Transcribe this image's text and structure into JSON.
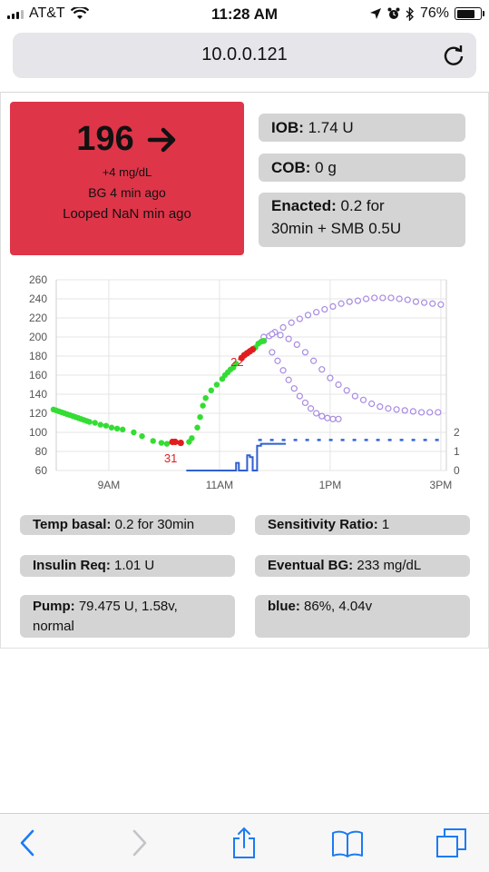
{
  "status_bar": {
    "carrier": "AT&T",
    "time": "11:28 AM",
    "battery": "76%",
    "battery_level": 0.76
  },
  "url_bar": {
    "url": "10.0.0.121"
  },
  "bg": {
    "value": "196",
    "delta": "+4 mg/dL",
    "age": "BG 4 min ago",
    "loop": "Looped NaN min ago",
    "color": "#df3549"
  },
  "iob": {
    "label": "IOB:",
    "value": " 1.74 U"
  },
  "cob": {
    "label": "COB:",
    "value": " 0 g"
  },
  "enacted": {
    "label": "Enacted:",
    "value": " 0.2 for",
    "value2": "30min + SMB 0.5U"
  },
  "stats": {
    "temp_basal": {
      "label": "Temp basal:",
      "value": " 0.2 for 30min"
    },
    "sensitivity": {
      "label": "Sensitivity Ratio:",
      "value": " 1"
    },
    "insulin_req": {
      "label": "Insulin Req:",
      "value": " 1.01 U"
    },
    "eventual_bg": {
      "label": "Eventual BG:",
      "value": " 233 mg/dL"
    },
    "pump": {
      "label": "Pump:",
      "value": " 79.475 U, 1.58v,",
      "value2": "normal"
    },
    "rig": {
      "label": "blue:",
      "value": " 86%, 4.04v"
    }
  },
  "chart_data": {
    "type": "scatter",
    "y_ticks": [
      "260",
      "240",
      "220",
      "200",
      "180",
      "160",
      "140",
      "120",
      "100",
      "80",
      "60"
    ],
    "ylim": [
      60,
      260
    ],
    "y2_ticks": [
      "2",
      "1",
      "0"
    ],
    "y2lim": [
      0,
      2
    ],
    "x_ticks": [
      "9AM",
      "11AM",
      "1PM",
      "3PM"
    ],
    "xlim": [
      8.05,
      15.1
    ],
    "annotations": [
      {
        "text": "31",
        "x": 10.0,
        "y": 80
      },
      {
        "text": "22",
        "x": 11.2,
        "y": 181
      }
    ],
    "bg_green": [
      [
        8.0,
        124
      ],
      [
        8.05,
        123
      ],
      [
        8.1,
        122
      ],
      [
        8.15,
        121
      ],
      [
        8.2,
        120
      ],
      [
        8.25,
        119
      ],
      [
        8.3,
        118
      ],
      [
        8.35,
        117
      ],
      [
        8.4,
        116
      ],
      [
        8.45,
        115
      ],
      [
        8.5,
        114
      ],
      [
        8.55,
        113
      ],
      [
        8.6,
        112
      ],
      [
        8.65,
        111
      ],
      [
        8.75,
        110
      ],
      [
        8.85,
        108
      ],
      [
        8.95,
        107
      ],
      [
        9.05,
        105
      ],
      [
        9.15,
        104
      ],
      [
        9.25,
        103
      ],
      [
        9.45,
        100
      ],
      [
        9.6,
        96
      ],
      [
        9.8,
        91
      ],
      [
        9.95,
        89
      ],
      [
        10.05,
        88
      ],
      [
        10.45,
        90
      ],
      [
        10.5,
        94
      ],
      [
        10.6,
        105
      ],
      [
        10.65,
        116
      ],
      [
        10.7,
        128
      ],
      [
        10.75,
        136
      ],
      [
        10.85,
        144
      ],
      [
        10.95,
        150
      ],
      [
        11.05,
        156
      ],
      [
        11.1,
        160
      ],
      [
        11.15,
        163
      ],
      [
        11.2,
        166
      ],
      [
        11.25,
        168
      ],
      [
        11.3,
        172
      ],
      [
        11.65,
        189
      ],
      [
        11.7,
        193
      ],
      [
        11.75,
        195
      ],
      [
        11.8,
        196
      ]
    ],
    "bg_red": [
      [
        10.15,
        90
      ],
      [
        10.2,
        90
      ],
      [
        10.3,
        89
      ],
      [
        11.4,
        178
      ],
      [
        11.45,
        181
      ],
      [
        11.5,
        183
      ],
      [
        11.55,
        185
      ],
      [
        11.6,
        187
      ]
    ],
    "pred_high": [
      [
        11.8,
        196
      ],
      [
        11.9,
        201
      ],
      [
        12.0,
        205
      ],
      [
        12.15,
        210
      ],
      [
        12.3,
        215
      ],
      [
        12.45,
        219
      ],
      [
        12.6,
        223
      ],
      [
        12.75,
        226
      ],
      [
        12.9,
        229
      ],
      [
        13.05,
        232
      ],
      [
        13.2,
        235
      ],
      [
        13.35,
        237
      ],
      [
        13.5,
        238
      ],
      [
        13.65,
        240
      ],
      [
        13.8,
        241
      ],
      [
        13.95,
        241
      ],
      [
        14.1,
        241
      ],
      [
        14.25,
        240
      ],
      [
        14.4,
        239
      ],
      [
        14.55,
        237
      ],
      [
        14.7,
        236
      ],
      [
        14.85,
        235
      ],
      [
        15.0,
        234
      ]
    ],
    "pred_mid": [
      [
        11.8,
        200
      ],
      [
        11.95,
        203
      ],
      [
        12.1,
        202
      ],
      [
        12.25,
        198
      ],
      [
        12.4,
        192
      ],
      [
        12.55,
        184
      ],
      [
        12.7,
        175
      ],
      [
        12.85,
        166
      ],
      [
        13.0,
        157
      ],
      [
        13.15,
        150
      ],
      [
        13.3,
        144
      ],
      [
        13.45,
        138
      ],
      [
        13.6,
        134
      ],
      [
        13.75,
        130
      ],
      [
        13.9,
        127
      ],
      [
        14.05,
        125
      ],
      [
        14.2,
        124
      ],
      [
        14.35,
        123
      ],
      [
        14.5,
        122
      ],
      [
        14.65,
        121
      ],
      [
        14.8,
        121
      ],
      [
        14.95,
        121
      ]
    ],
    "pred_low": [
      [
        11.95,
        184
      ],
      [
        12.05,
        175
      ],
      [
        12.15,
        165
      ],
      [
        12.25,
        155
      ],
      [
        12.35,
        146
      ],
      [
        12.45,
        138
      ],
      [
        12.55,
        131
      ],
      [
        12.65,
        125
      ],
      [
        12.75,
        120
      ],
      [
        12.85,
        117
      ],
      [
        12.95,
        115
      ],
      [
        13.05,
        114
      ],
      [
        13.15,
        114
      ]
    ],
    "basal_actual": [
      [
        10.4,
        0
      ],
      [
        11.3,
        0
      ],
      [
        11.3,
        0.4
      ],
      [
        11.35,
        0.4
      ],
      [
        11.35,
        0
      ],
      [
        11.5,
        0
      ],
      [
        11.5,
        0.8
      ],
      [
        11.55,
        0.8
      ],
      [
        11.55,
        0.7
      ],
      [
        11.6,
        0.7
      ],
      [
        11.6,
        0
      ],
      [
        11.68,
        0
      ],
      [
        11.68,
        1.3
      ],
      [
        11.75,
        1.3
      ],
      [
        11.75,
        1.4
      ],
      [
        12.2,
        1.4
      ]
    ],
    "basal_scheduled": [
      [
        11.7,
        1.6
      ],
      [
        15.0,
        1.6
      ]
    ]
  }
}
